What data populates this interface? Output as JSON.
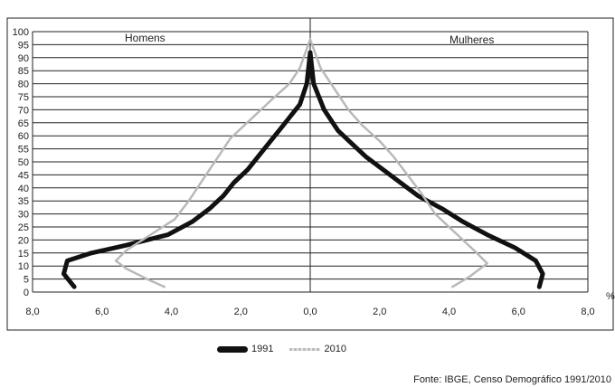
{
  "chart_data": {
    "type": "line",
    "title": "",
    "xlabel": "%",
    "ylabel": "",
    "x_tick_labels": [
      "8,0",
      "6,0",
      "4,0",
      "2,0",
      "0,0",
      "2,0",
      "4,0",
      "6,0",
      "8,0"
    ],
    "y_tick_labels": [
      "0",
      "5",
      "10",
      "15",
      "20",
      "25",
      "30",
      "35",
      "40",
      "45",
      "50",
      "55",
      "60",
      "65",
      "70",
      "75",
      "80",
      "85",
      "90",
      "95",
      "100"
    ],
    "xlim": [
      -8,
      8
    ],
    "ylim": [
      0,
      100
    ],
    "grid": "horizontal",
    "side_labels": {
      "left": "Homens",
      "right": "Mulheres"
    },
    "series": [
      {
        "name": "1991",
        "color": "#111111",
        "x": [
          -6.8,
          -7.1,
          -7.0,
          -6.3,
          -5.3,
          -4.1,
          -3.4,
          -2.9,
          -2.5,
          -2.2,
          -1.8,
          -1.5,
          -1.2,
          -0.9,
          -0.6,
          -0.3,
          -0.1,
          0.0,
          0.1,
          0.4,
          0.8,
          1.2,
          1.6,
          2.1,
          2.6,
          3.1,
          3.8,
          4.4,
          5.1,
          5.9,
          6.5,
          6.7,
          6.6
        ],
        "y": [
          2,
          7,
          12,
          15,
          18,
          22,
          27,
          32,
          37,
          42,
          47,
          52,
          57,
          62,
          67,
          72,
          80,
          92,
          80,
          70,
          62,
          57,
          52,
          47,
          42,
          37,
          32,
          27,
          22,
          17,
          12,
          7,
          2
        ]
      },
      {
        "name": "2010",
        "color": "#b8b8b8",
        "x": [
          -4.2,
          -4.7,
          -5.3,
          -5.6,
          -5.3,
          -4.6,
          -3.9,
          -3.5,
          -3.2,
          -2.9,
          -2.6,
          -2.3,
          -1.9,
          -1.5,
          -1.1,
          -0.6,
          -0.3,
          0.0,
          0.3,
          0.7,
          1.1,
          1.5,
          2.0,
          2.4,
          2.8,
          3.2,
          3.6,
          4.0,
          4.4,
          4.8,
          5.1,
          4.6,
          4.1
        ],
        "y": [
          2,
          5,
          9,
          12,
          16,
          22,
          28,
          35,
          41,
          47,
          53,
          59,
          64,
          69,
          74,
          80,
          86,
          97,
          86,
          78,
          70,
          64,
          58,
          52,
          45,
          38,
          30,
          25,
          20,
          15,
          11,
          6,
          2
        ]
      }
    ],
    "legend_position": "bottom",
    "source": "Fonte: IBGE, Censo Demográfico 1991/2010"
  }
}
